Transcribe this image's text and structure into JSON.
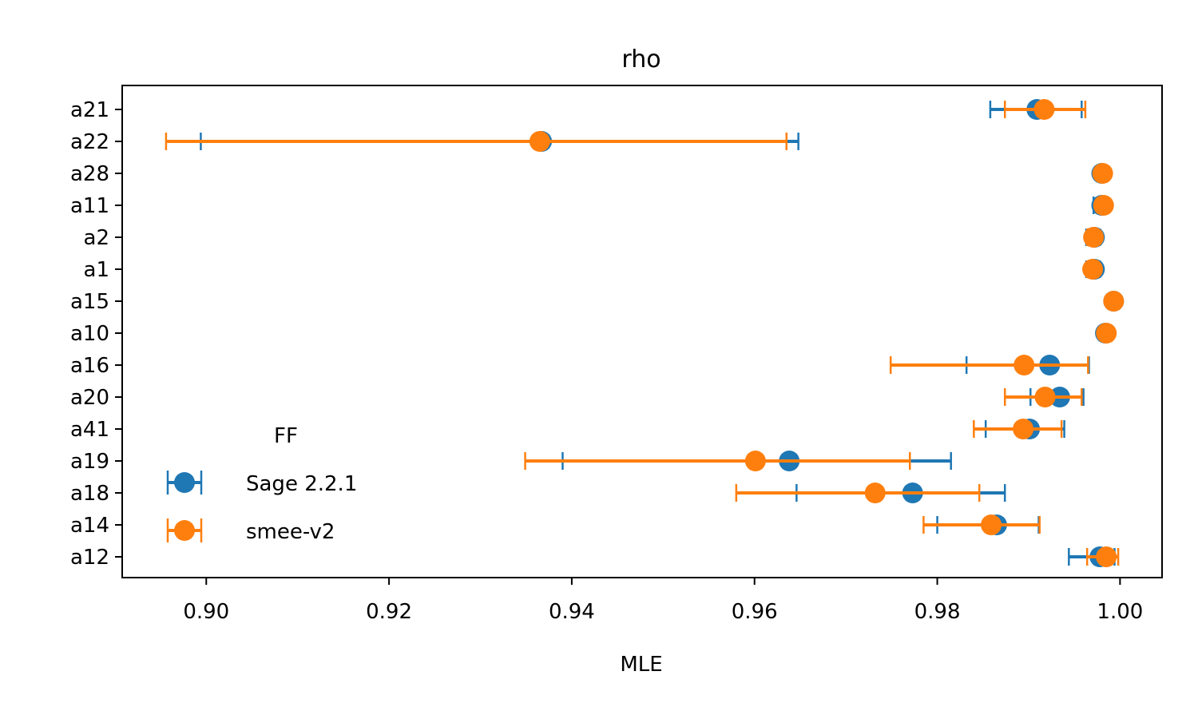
{
  "chart_data": {
    "type": "scatter",
    "title": "rho",
    "xlabel": "MLE",
    "ylabel": "",
    "xlim": [
      0.8908,
      1.0046
    ],
    "xticks": [
      0.9,
      0.92,
      0.94,
      0.96,
      0.98,
      1.0
    ],
    "xtick_labels": [
      "0.90",
      "0.92",
      "0.94",
      "0.96",
      "0.98",
      "1.00"
    ],
    "categories": [
      "a21",
      "a22",
      "a28",
      "a11",
      "a2",
      "a1",
      "a15",
      "a10",
      "a16",
      "a20",
      "a41",
      "a19",
      "a18",
      "a14",
      "a12"
    ],
    "grid": false,
    "legend": {
      "title": "FF",
      "placement": "lower-left"
    },
    "series": [
      {
        "name": "Sage 2.2.1",
        "color": "#1f77b4",
        "values": [
          0.9909,
          0.9367,
          0.998,
          0.998,
          0.9972,
          0.9972,
          0.9993,
          0.9984,
          0.9923,
          0.9934,
          0.9901,
          0.9638,
          0.9773,
          0.9865,
          0.9978
        ],
        "err_low": [
          0.9858,
          0.8994,
          0.9976,
          0.9971,
          0.9963,
          0.9963,
          0.9989,
          0.9979,
          0.9832,
          0.9902,
          0.9853,
          0.939,
          0.9646,
          0.98,
          0.9944
        ],
        "err_high": [
          0.9958,
          0.9648,
          0.9983,
          0.9984,
          0.9978,
          0.9978,
          0.9996,
          0.9988,
          0.9966,
          0.996,
          0.9939,
          0.9815,
          0.9874,
          0.9911,
          0.9994
        ]
      },
      {
        "name": "smee-v2",
        "color": "#ff7f0e",
        "values": [
          0.9917,
          0.9365,
          0.9981,
          0.9982,
          0.9971,
          0.997,
          0.9993,
          0.9985,
          0.9895,
          0.9918,
          0.9894,
          0.9601,
          0.9732,
          0.9859,
          0.9985
        ],
        "err_low": [
          0.9874,
          0.8956,
          0.9978,
          0.9976,
          0.9964,
          0.9964,
          0.999,
          0.9981,
          0.9749,
          0.9874,
          0.984,
          0.9349,
          0.958,
          0.9785,
          0.9964
        ],
        "err_high": [
          0.9962,
          0.9635,
          0.9985,
          0.9986,
          0.9976,
          0.9976,
          0.9996,
          0.9989,
          0.9965,
          0.9958,
          0.9936,
          0.977,
          0.9846,
          0.9912,
          0.9998
        ]
      }
    ]
  }
}
